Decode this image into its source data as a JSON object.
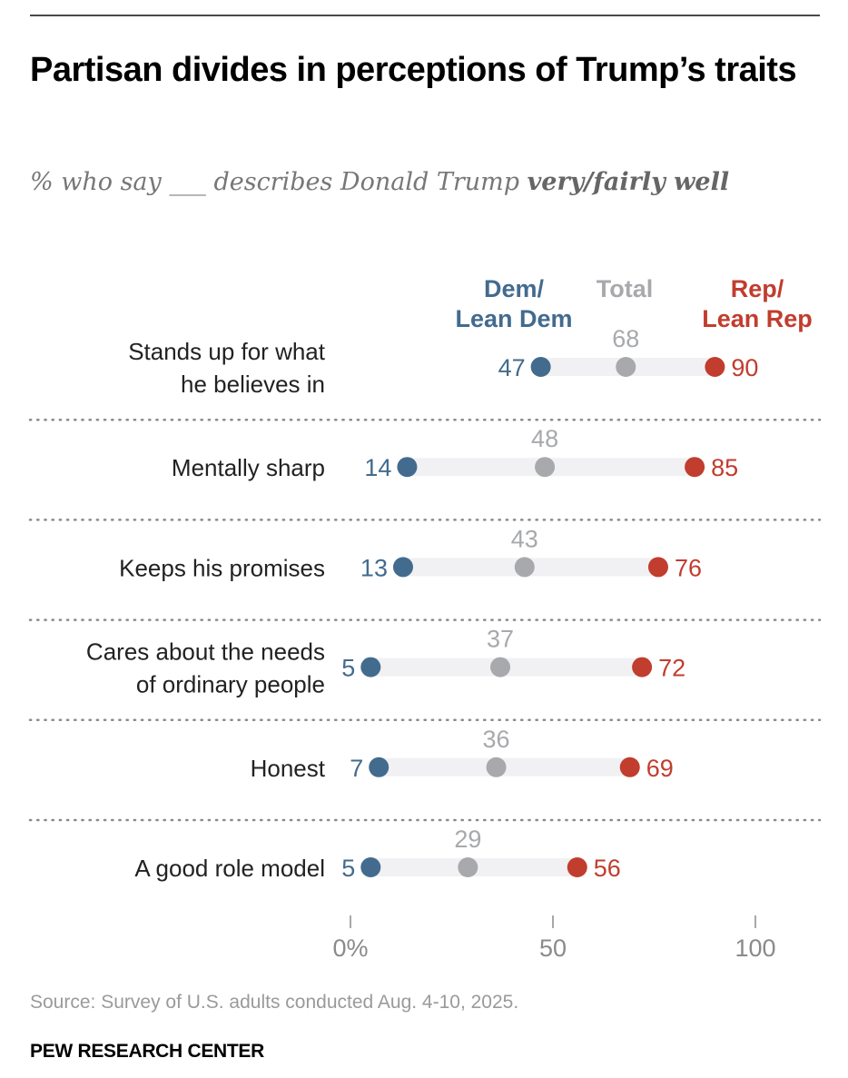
{
  "title": "Partisan divides in perceptions of Trump’s traits",
  "subtitle": {
    "prefix": "% who say ___ describes Donald Trump ",
    "emphasis": "very/fairly well"
  },
  "source": "Source: Survey of U.S. adults conducted Aug. 4-10, 2025.",
  "brand": "PEW RESEARCH CENTER",
  "colors": {
    "dem": "#436b8e",
    "total": "#a7a9ac",
    "rep": "#c13d2e",
    "bar": "#f1f1f3",
    "label": "#222222",
    "axis": "#8a8a8a",
    "divider": "#8a8a8a"
  },
  "chart_data": {
    "type": "dot",
    "title": "Partisan divides in perceptions of Trump’s traits",
    "subtitle": "% who say ___ describes Donald Trump very/fairly well",
    "xlabel": "",
    "ylabel": "",
    "xlim": [
      0,
      100
    ],
    "x_ticks": [
      0,
      50,
      100
    ],
    "x_tick_labels": [
      "0%",
      "50",
      "100"
    ],
    "legend_placement": "top",
    "series_headers": [
      {
        "key": "dem",
        "lines": [
          "Dem/",
          "Lean Dem"
        ]
      },
      {
        "key": "total",
        "lines": [
          "Total"
        ]
      },
      {
        "key": "rep",
        "lines": [
          "Rep/",
          "Lean Rep"
        ]
      }
    ],
    "categories": [
      {
        "lines": [
          "Stands up for what",
          "he believes in"
        ]
      },
      {
        "lines": [
          "Mentally sharp"
        ]
      },
      {
        "lines": [
          "Keeps his promises"
        ]
      },
      {
        "lines": [
          "Cares about the needs",
          "of ordinary people"
        ]
      },
      {
        "lines": [
          "Honest"
        ]
      },
      {
        "lines": [
          "A good role model"
        ]
      }
    ],
    "series": [
      {
        "name": "Dem/Lean Dem",
        "key": "dem",
        "values": [
          47,
          14,
          13,
          5,
          7,
          5
        ]
      },
      {
        "name": "Total",
        "key": "total",
        "values": [
          68,
          48,
          43,
          37,
          36,
          29
        ]
      },
      {
        "name": "Rep/Lean Rep",
        "key": "rep",
        "values": [
          90,
          85,
          76,
          72,
          69,
          56
        ]
      }
    ]
  }
}
